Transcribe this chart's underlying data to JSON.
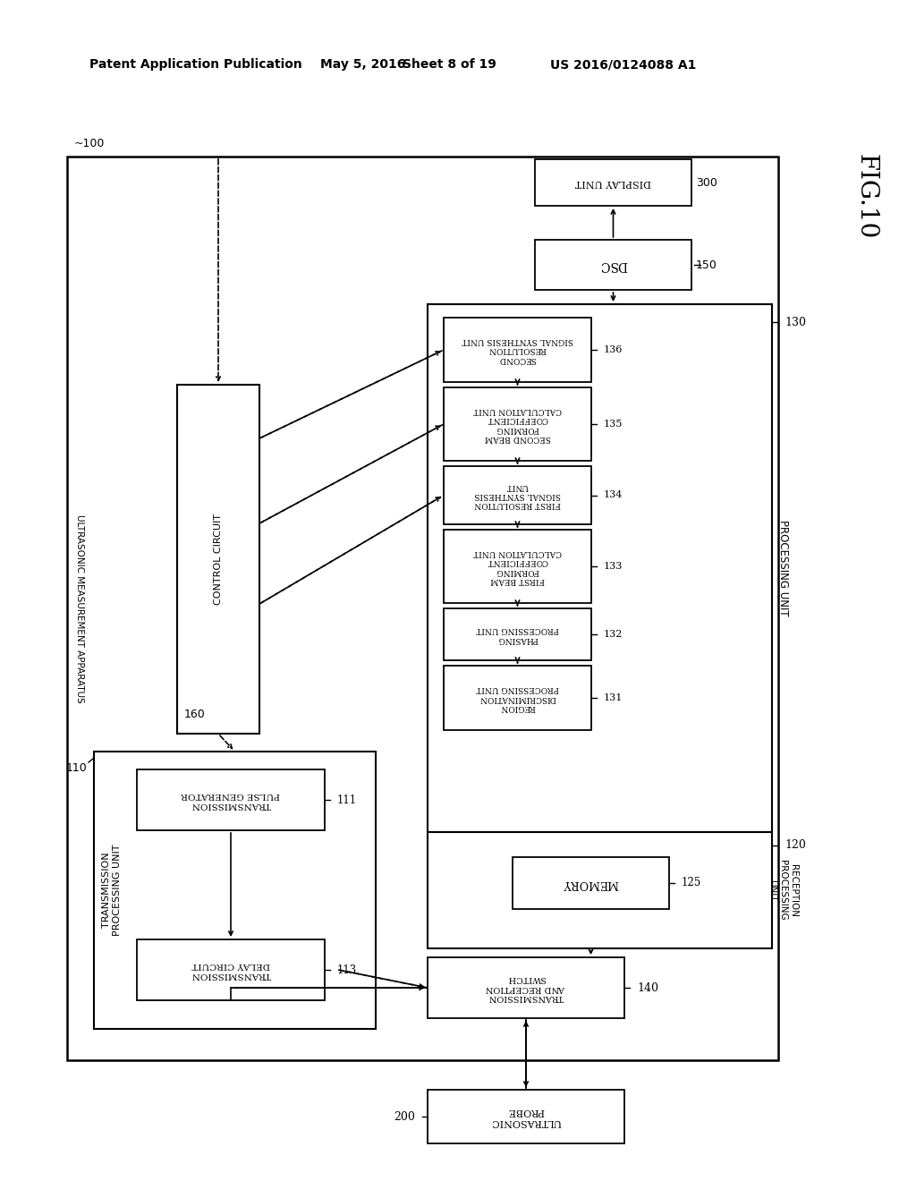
{
  "bg": "#ffffff",
  "header1": "Patent Application Publication",
  "header2": "May 5, 2016",
  "header3": "Sheet 8 of 19",
  "header4": "US 2016/0124088 A1",
  "fig": "FIG.10",
  "outer_label": "~100",
  "outer_text": "ULTRASONIC MEASUREMENT APPARATUS",
  "boxes": {
    "display": {
      "label": "DISPLAY UNIT",
      "num": "300"
    },
    "dsc": {
      "label": "DSC",
      "num": "150"
    },
    "proc_unit": {
      "num": "130",
      "text": "PROCESSING UNIT"
    },
    "b136": {
      "lines": [
        "SECOND",
        "RESOLUTION",
        "SIGNAL SYNTHESIS UNIT"
      ],
      "num": "136"
    },
    "b135": {
      "lines": [
        "SECOND BEAM",
        "FORMING",
        "COEFFICIENT",
        "CALCULATION UNIT"
      ],
      "num": "135"
    },
    "b134": {
      "lines": [
        "FIRST RESOLUTION",
        "SIGNAL SYNTHESIS",
        "UNIT"
      ],
      "num": "134"
    },
    "b133": {
      "lines": [
        "FIRST BEAM",
        "FORMING",
        "COEFFICIENT",
        "CALCULATION UNIT"
      ],
      "num": "133"
    },
    "b132": {
      "lines": [
        "PHASING",
        "PROCESSING UNIT"
      ],
      "num": "132"
    },
    "b131": {
      "lines": [
        "REGION",
        "DISCRIMINATION",
        "PROCESSING UNIT"
      ],
      "num": "131"
    },
    "recep": {
      "text": "RECEPTION\nPROCESSING\nUNIT",
      "num": "120"
    },
    "memory": {
      "label": "MEMORY",
      "num": "125"
    },
    "trs": {
      "lines": [
        "TRANSMISSION",
        "AND RECEPTION",
        "SWITCH"
      ],
      "num": "140"
    },
    "probe": {
      "lines": [
        "ULTRASONIC",
        "PROBE"
      ],
      "num": "200"
    },
    "trans_unit": {
      "text": "TRANSMISSION\nPROCESSING UNIT",
      "num": "110"
    },
    "tpg": {
      "lines": [
        "TRANSMISSION",
        "PULSE GENERATOR"
      ],
      "num": "111"
    },
    "tdc": {
      "lines": [
        "TRANSMISSION",
        "DELAY CIRCUIT"
      ],
      "num": "113"
    },
    "ctrl": {
      "label": "CONTROL CIRCUIT",
      "num": "160"
    }
  }
}
